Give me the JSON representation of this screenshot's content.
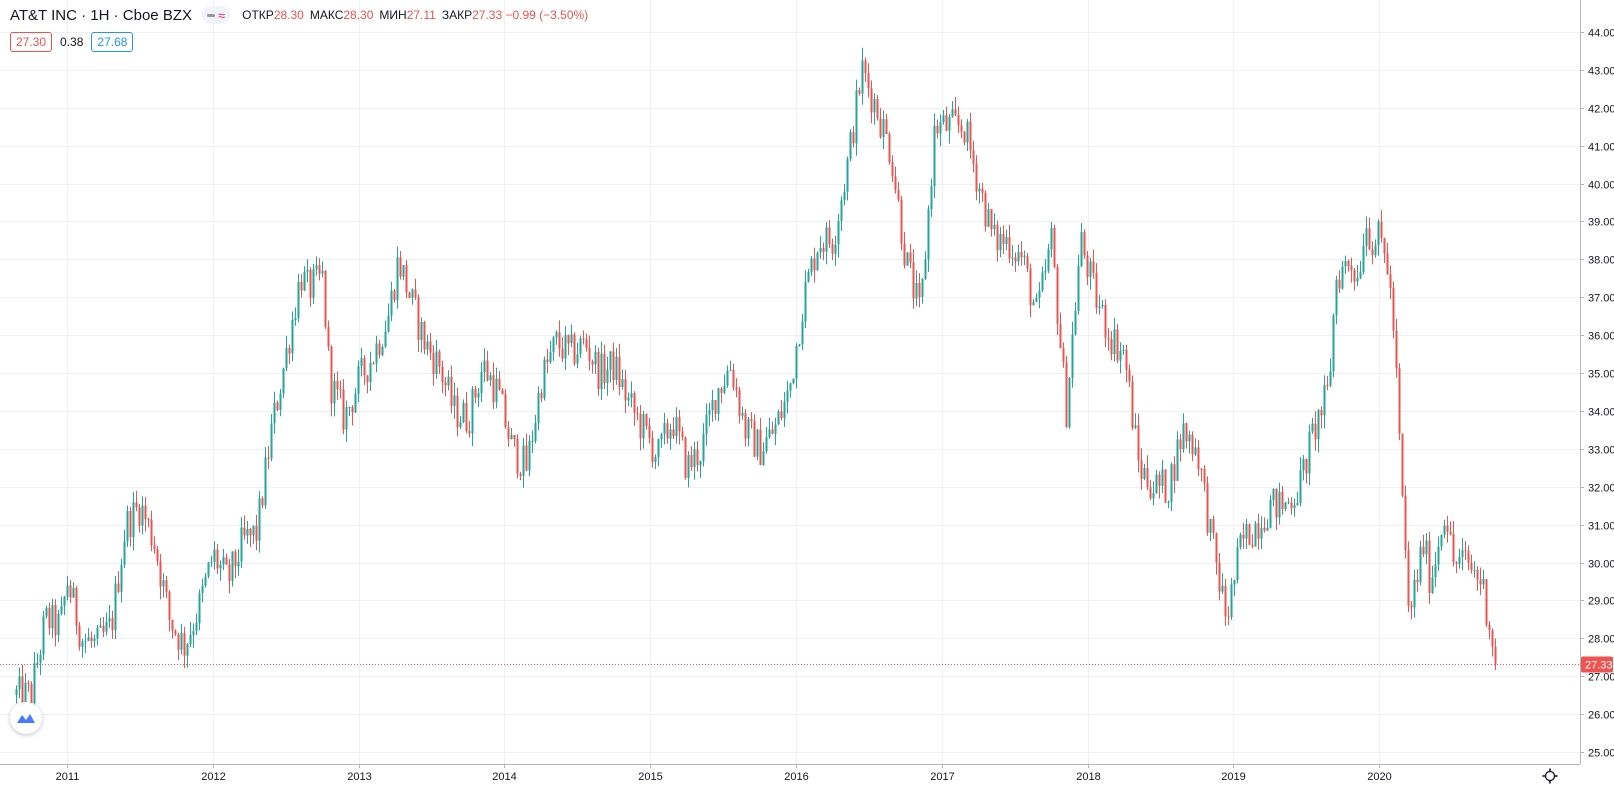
{
  "header": {
    "symbol": "AT&T INC · 1H · Cboe BZX",
    "ohlc": [
      {
        "label": "ОТКР",
        "value": "28.30"
      },
      {
        "label": "МАКС",
        "value": "28.30"
      },
      {
        "label": "МИН",
        "value": "27.11"
      },
      {
        "label": "ЗАКР",
        "value": "27.33 −0.99 (−3.50%)"
      }
    ]
  },
  "indicator": {
    "bid": "27.30",
    "spread": "0.38",
    "ask": "27.68"
  },
  "colors": {
    "up": "#26a69a",
    "down": "#ef5350",
    "grid": "#eef0f4",
    "text": "#131722",
    "accent": "#2196f3"
  },
  "icons": {
    "logo": "tradingview-logo-icon",
    "settings": "gear-icon"
  },
  "chart_data": {
    "type": "candlestick",
    "x_ticks": [
      "2011",
      "2012",
      "2013",
      "2014",
      "2015",
      "2016",
      "2017",
      "2018",
      "2019",
      "2020"
    ],
    "y_ticks": [
      "25.00",
      "26.00",
      "27.00",
      "28.00",
      "29.00",
      "30.00",
      "31.00",
      "32.00",
      "33.00",
      "34.00",
      "35.00",
      "36.00",
      "37.00",
      "38.00",
      "39.00",
      "40.00",
      "41.00",
      "42.00",
      "43.00",
      "44.00"
    ],
    "ylim": [
      24.6,
      44.2
    ],
    "last_price": "27.33",
    "last_price_value": 27.33,
    "grid": true,
    "price_path": [
      [
        2010.65,
        26.5
      ],
      [
        2010.75,
        26.5
      ],
      [
        2010.85,
        28.5
      ],
      [
        2010.95,
        28.3
      ],
      [
        2011.0,
        29.5
      ],
      [
        2011.1,
        28.0
      ],
      [
        2011.2,
        27.8
      ],
      [
        2011.3,
        28.3
      ],
      [
        2011.4,
        31.0
      ],
      [
        2011.5,
        31.5
      ],
      [
        2011.6,
        30.5
      ],
      [
        2011.7,
        28.5
      ],
      [
        2011.8,
        27.8
      ],
      [
        2011.9,
        28.8
      ],
      [
        2012.0,
        30.2
      ],
      [
        2012.1,
        29.5
      ],
      [
        2012.2,
        30.5
      ],
      [
        2012.3,
        30.8
      ],
      [
        2012.4,
        33.5
      ],
      [
        2012.5,
        35.5
      ],
      [
        2012.6,
        37.6
      ],
      [
        2012.65,
        37.2
      ],
      [
        2012.75,
        37.5
      ],
      [
        2012.8,
        34.8
      ],
      [
        2012.9,
        33.8
      ],
      [
        2013.0,
        34.8
      ],
      [
        2013.1,
        35.5
      ],
      [
        2013.2,
        36.5
      ],
      [
        2013.27,
        38.0
      ],
      [
        2013.35,
        37.0
      ],
      [
        2013.45,
        35.8
      ],
      [
        2013.55,
        35.2
      ],
      [
        2013.65,
        34.0
      ],
      [
        2013.75,
        33.8
      ],
      [
        2013.85,
        35.2
      ],
      [
        2013.95,
        34.5
      ],
      [
        2014.05,
        33.0
      ],
      [
        2014.15,
        32.5
      ],
      [
        2014.25,
        34.8
      ],
      [
        2014.35,
        35.8
      ],
      [
        2014.45,
        35.5
      ],
      [
        2014.55,
        35.8
      ],
      [
        2014.65,
        35.0
      ],
      [
        2014.75,
        35.2
      ],
      [
        2014.85,
        34.2
      ],
      [
        2014.95,
        33.5
      ],
      [
        2015.05,
        32.8
      ],
      [
        2015.15,
        33.8
      ],
      [
        2015.25,
        32.5
      ],
      [
        2015.35,
        33.0
      ],
      [
        2015.45,
        34.5
      ],
      [
        2015.55,
        35.2
      ],
      [
        2015.65,
        33.5
      ],
      [
        2015.75,
        33.0
      ],
      [
        2015.85,
        33.5
      ],
      [
        2015.95,
        34.5
      ],
      [
        2016.05,
        37.0
      ],
      [
        2016.15,
        38.5
      ],
      [
        2016.25,
        38.5
      ],
      [
        2016.35,
        40.5
      ],
      [
        2016.45,
        43.0
      ],
      [
        2016.55,
        42.0
      ],
      [
        2016.65,
        40.8
      ],
      [
        2016.75,
        38.0
      ],
      [
        2016.85,
        36.5
      ],
      [
        2016.95,
        41.5
      ],
      [
        2017.05,
        41.5
      ],
      [
        2017.15,
        41.5
      ],
      [
        2017.25,
        40.0
      ],
      [
        2017.35,
        38.5
      ],
      [
        2017.45,
        38.5
      ],
      [
        2017.55,
        38.0
      ],
      [
        2017.65,
        36.5
      ],
      [
        2017.75,
        38.5
      ],
      [
        2017.85,
        34.0
      ],
      [
        2017.95,
        38.5
      ],
      [
        2018.05,
        37.0
      ],
      [
        2018.15,
        36.0
      ],
      [
        2018.25,
        35.5
      ],
      [
        2018.35,
        32.5
      ],
      [
        2018.45,
        32.0
      ],
      [
        2018.55,
        32.0
      ],
      [
        2018.65,
        33.5
      ],
      [
        2018.75,
        33.0
      ],
      [
        2018.85,
        30.5
      ],
      [
        2018.95,
        28.5
      ],
      [
        2019.05,
        30.5
      ],
      [
        2019.15,
        31.0
      ],
      [
        2019.25,
        31.5
      ],
      [
        2019.35,
        31.5
      ],
      [
        2019.45,
        32.0
      ],
      [
        2019.55,
        33.5
      ],
      [
        2019.65,
        34.5
      ],
      [
        2019.7,
        37.5
      ],
      [
        2019.8,
        38.0
      ],
      [
        2019.85,
        37.5
      ],
      [
        2019.9,
        39.0
      ],
      [
        2019.95,
        38.5
      ],
      [
        2020.0,
        38.5
      ],
      [
        2020.05,
        38.0
      ],
      [
        2020.1,
        36.0
      ],
      [
        2020.15,
        32.0
      ],
      [
        2020.2,
        28.5
      ],
      [
        2020.3,
        30.5
      ],
      [
        2020.35,
        29.5
      ],
      [
        2020.45,
        31.5
      ],
      [
        2020.5,
        30.0
      ],
      [
        2020.6,
        30.0
      ],
      [
        2020.7,
        29.5
      ],
      [
        2020.75,
        28.5
      ],
      [
        2020.8,
        27.33
      ]
    ]
  }
}
